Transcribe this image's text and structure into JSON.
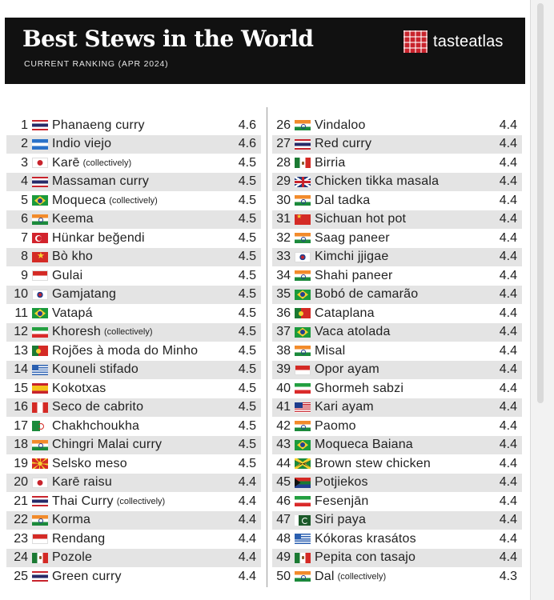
{
  "header": {
    "title": "Best Stews in the World",
    "subtitle": "CURRENT RANKING (APR 2024)",
    "logo_text": "tasteatlas"
  },
  "rankings": {
    "left": [
      {
        "rank": "1",
        "flag": "thailand",
        "name": "Phanaeng curry",
        "note": "",
        "score": "4.6"
      },
      {
        "rank": "2",
        "flag": "honduras",
        "name": "Indio viejo",
        "note": "",
        "score": "4.6"
      },
      {
        "rank": "3",
        "flag": "japan",
        "name": "Karē",
        "note": "(collectively)",
        "score": "4.5"
      },
      {
        "rank": "4",
        "flag": "thailand",
        "name": "Massaman curry",
        "note": "",
        "score": "4.5"
      },
      {
        "rank": "5",
        "flag": "brazil",
        "name": "Moqueca",
        "note": "(collectively)",
        "score": "4.5"
      },
      {
        "rank": "6",
        "flag": "india",
        "name": "Keema",
        "note": "",
        "score": "4.5"
      },
      {
        "rank": "7",
        "flag": "turkey",
        "name": "Hünkar beğendi",
        "note": "",
        "score": "4.5"
      },
      {
        "rank": "8",
        "flag": "vietnam",
        "name": "Bò kho",
        "note": "",
        "score": "4.5"
      },
      {
        "rank": "9",
        "flag": "indonesia",
        "name": "Gulai",
        "note": "",
        "score": "4.5"
      },
      {
        "rank": "10",
        "flag": "south-korea",
        "name": "Gamjatang",
        "note": "",
        "score": "4.5"
      },
      {
        "rank": "11",
        "flag": "brazil",
        "name": "Vatapá",
        "note": "",
        "score": "4.5"
      },
      {
        "rank": "12",
        "flag": "iran",
        "name": "Khoresh",
        "note": "(collectively)",
        "score": "4.5"
      },
      {
        "rank": "13",
        "flag": "portugal",
        "name": "Rojões à moda do Minho",
        "note": "",
        "score": "4.5"
      },
      {
        "rank": "14",
        "flag": "greece",
        "name": "Kouneli stifado",
        "note": "",
        "score": "4.5"
      },
      {
        "rank": "15",
        "flag": "spain",
        "name": "Kokotxas",
        "note": "",
        "score": "4.5"
      },
      {
        "rank": "16",
        "flag": "peru",
        "name": "Seco de cabrito",
        "note": "",
        "score": "4.5"
      },
      {
        "rank": "17",
        "flag": "algeria",
        "name": "Chakhchoukha",
        "note": "",
        "score": "4.5"
      },
      {
        "rank": "18",
        "flag": "india",
        "name": "Chingri Malai curry",
        "note": "",
        "score": "4.5"
      },
      {
        "rank": "19",
        "flag": "north-macedonia",
        "name": "Selsko meso",
        "note": "",
        "score": "4.5"
      },
      {
        "rank": "20",
        "flag": "japan",
        "name": "Karē raisu",
        "note": "",
        "score": "4.4"
      },
      {
        "rank": "21",
        "flag": "thailand",
        "name": "Thai Curry",
        "note": "(collectively)",
        "score": "4.4"
      },
      {
        "rank": "22",
        "flag": "india",
        "name": "Korma",
        "note": "",
        "score": "4.4"
      },
      {
        "rank": "23",
        "flag": "indonesia",
        "name": "Rendang",
        "note": "",
        "score": "4.4"
      },
      {
        "rank": "24",
        "flag": "mexico",
        "name": "Pozole",
        "note": "",
        "score": "4.4"
      },
      {
        "rank": "25",
        "flag": "thailand",
        "name": "Green curry",
        "note": "",
        "score": "4.4"
      }
    ],
    "right": [
      {
        "rank": "26",
        "flag": "india",
        "name": "Vindaloo",
        "note": "",
        "score": "4.4"
      },
      {
        "rank": "27",
        "flag": "thailand",
        "name": "Red curry",
        "note": "",
        "score": "4.4"
      },
      {
        "rank": "28",
        "flag": "mexico",
        "name": "Birria",
        "note": "",
        "score": "4.4"
      },
      {
        "rank": "29",
        "flag": "uk",
        "name": "Chicken tikka masala",
        "note": "",
        "score": "4.4"
      },
      {
        "rank": "30",
        "flag": "india",
        "name": "Dal tadka",
        "note": "",
        "score": "4.4"
      },
      {
        "rank": "31",
        "flag": "china",
        "name": "Sichuan hot pot",
        "note": "",
        "score": "4.4"
      },
      {
        "rank": "32",
        "flag": "india",
        "name": "Saag paneer",
        "note": "",
        "score": "4.4"
      },
      {
        "rank": "33",
        "flag": "south-korea",
        "name": "Kimchi jjigae",
        "note": "",
        "score": "4.4"
      },
      {
        "rank": "34",
        "flag": "india",
        "name": "Shahi paneer",
        "note": "",
        "score": "4.4"
      },
      {
        "rank": "35",
        "flag": "brazil",
        "name": "Bobó de camarão",
        "note": "",
        "score": "4.4"
      },
      {
        "rank": "36",
        "flag": "portugal",
        "name": "Cataplana",
        "note": "",
        "score": "4.4"
      },
      {
        "rank": "37",
        "flag": "brazil",
        "name": "Vaca atolada",
        "note": "",
        "score": "4.4"
      },
      {
        "rank": "38",
        "flag": "india",
        "name": "Misal",
        "note": "",
        "score": "4.4"
      },
      {
        "rank": "39",
        "flag": "indonesia",
        "name": "Opor ayam",
        "note": "",
        "score": "4.4"
      },
      {
        "rank": "40",
        "flag": "iran",
        "name": "Ghormeh sabzi",
        "note": "",
        "score": "4.4"
      },
      {
        "rank": "41",
        "flag": "malaysia",
        "name": "Kari ayam",
        "note": "",
        "score": "4.4"
      },
      {
        "rank": "42",
        "flag": "india",
        "name": "Paomo",
        "note": "",
        "score": "4.4"
      },
      {
        "rank": "43",
        "flag": "brazil",
        "name": "Moqueca Baiana",
        "note": "",
        "score": "4.4"
      },
      {
        "rank": "44",
        "flag": "jamaica",
        "name": "Brown stew chicken",
        "note": "",
        "score": "4.4"
      },
      {
        "rank": "45",
        "flag": "south-africa",
        "name": "Potjiekos",
        "note": "",
        "score": "4.4"
      },
      {
        "rank": "46",
        "flag": "iran",
        "name": "Fesenjān",
        "note": "",
        "score": "4.4"
      },
      {
        "rank": "47",
        "flag": "pakistan",
        "name": "Siri paya",
        "note": "",
        "score": "4.4"
      },
      {
        "rank": "48",
        "flag": "greece",
        "name": "Kókoras krasátos",
        "note": "",
        "score": "4.4"
      },
      {
        "rank": "49",
        "flag": "mexico",
        "name": "Pepita con tasajo",
        "note": "",
        "score": "4.4"
      },
      {
        "rank": "50",
        "flag": "india",
        "name": "Dal",
        "note": "(collectively)",
        "score": "4.3"
      }
    ]
  }
}
